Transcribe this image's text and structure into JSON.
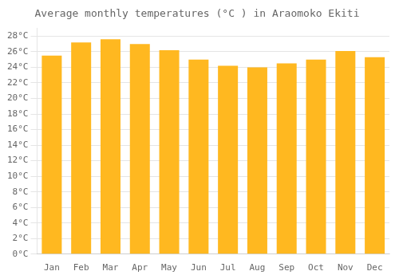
{
  "chart_data": {
    "type": "bar",
    "title": "Average monthly temperatures (°C ) in Araomoko Ekiti",
    "categories": [
      "Jan",
      "Feb",
      "Mar",
      "Apr",
      "May",
      "Jun",
      "Jul",
      "Aug",
      "Sep",
      "Oct",
      "Nov",
      "Dec"
    ],
    "values": [
      25.5,
      27.2,
      27.6,
      27.0,
      26.2,
      25.0,
      24.2,
      24.0,
      24.5,
      25.0,
      26.1,
      25.3
    ],
    "color": "#FFB820",
    "ylim": [
      0,
      29
    ],
    "yticks": [
      {
        "value": 0,
        "label": "0°C"
      },
      {
        "value": 2,
        "label": "2°C"
      },
      {
        "value": 4,
        "label": "4°C"
      },
      {
        "value": 6,
        "label": "6°C"
      },
      {
        "value": 8,
        "label": "8°C"
      },
      {
        "value": 10,
        "label": "10°C"
      },
      {
        "value": 12,
        "label": "12°C"
      },
      {
        "value": 14,
        "label": "14°C"
      },
      {
        "value": 16,
        "label": "16°C"
      },
      {
        "value": 18,
        "label": "18°C"
      },
      {
        "value": 20,
        "label": "20°C"
      },
      {
        "value": 22,
        "label": "22°C"
      },
      {
        "value": 24,
        "label": "24°C"
      },
      {
        "value": 26,
        "label": "26°C"
      },
      {
        "value": 28,
        "label": "28°C"
      }
    ],
    "grid": true
  }
}
